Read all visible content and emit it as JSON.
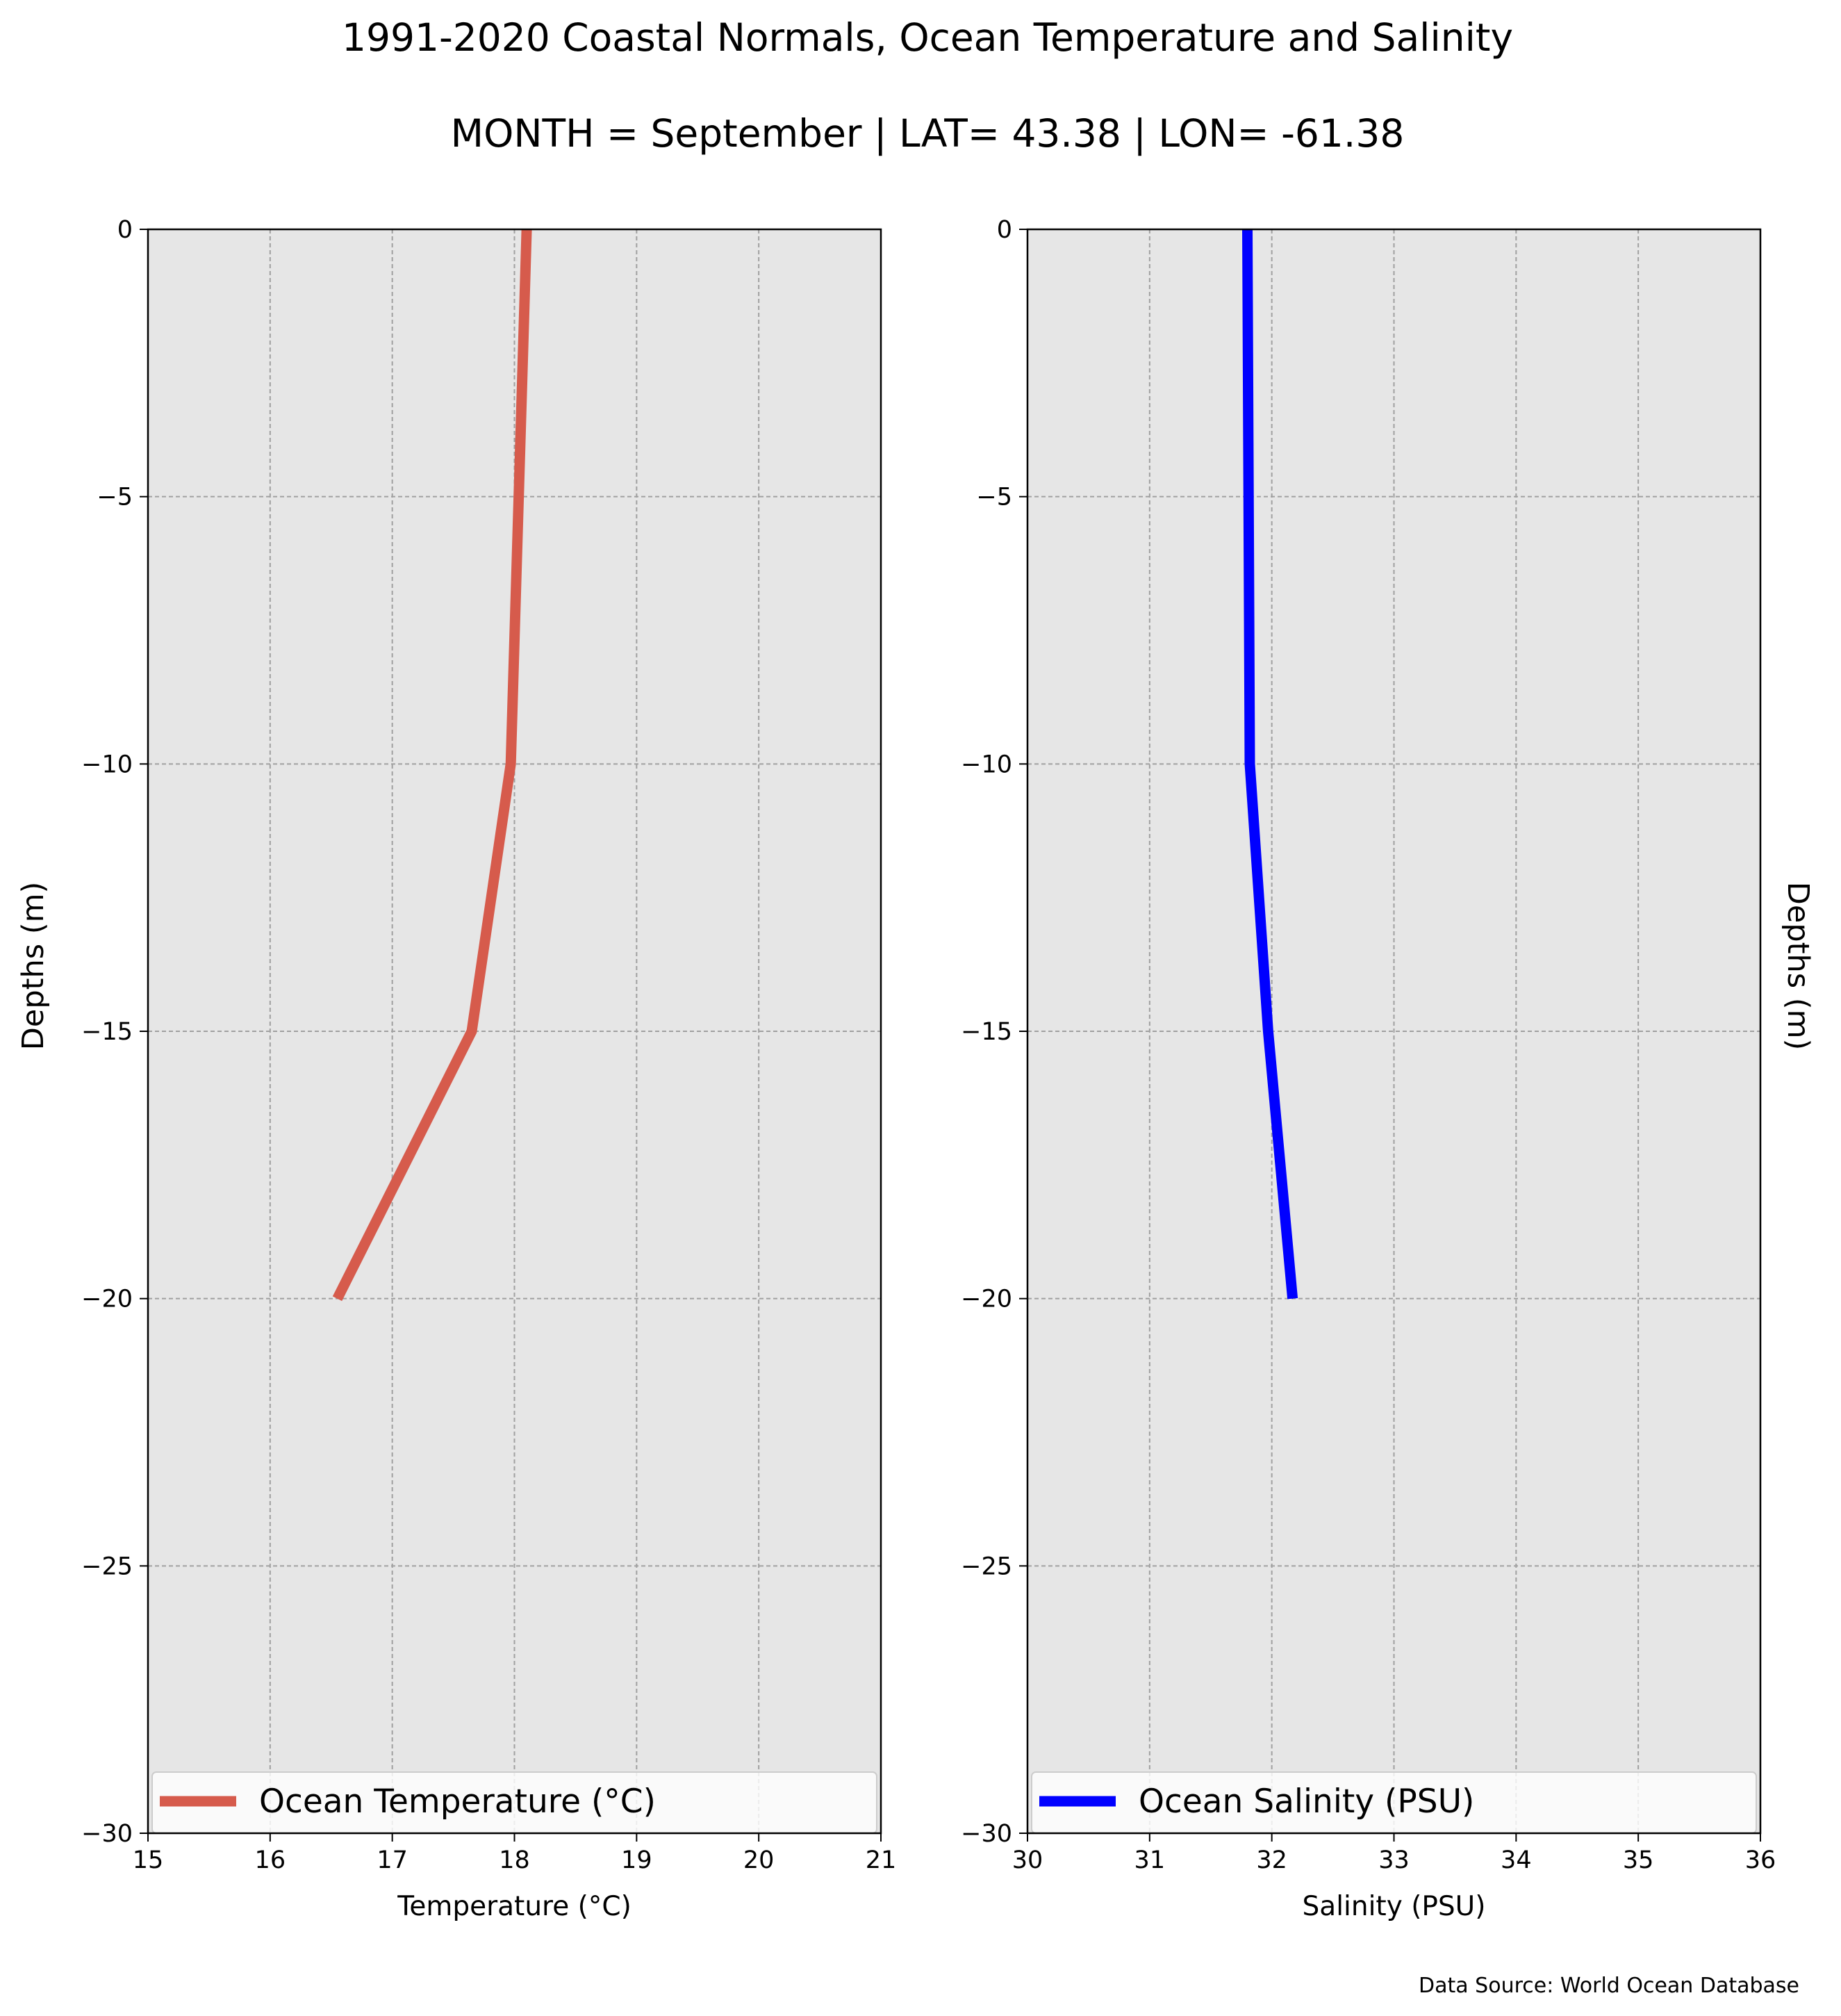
{
  "title": "1991-2020 Coastal Normals, Ocean Temperature and Salinity",
  "subtitle": "MONTH = September | LAT= 43.38 | LON= -61.38",
  "source": "Data Source: World Ocean Database",
  "colors": {
    "temperature": "#d65b4c",
    "salinity": "#0000ff",
    "plot_bg": "#e6e6e6",
    "grid": "#a0a0a0"
  },
  "chart_data": [
    {
      "type": "line",
      "xlabel": "Temperature ($^\\circ$C)",
      "xlabel_display": "Temperature (°C)",
      "ylabel": "Depths (m)",
      "xlim": [
        15,
        21
      ],
      "ylim": [
        -30,
        0
      ],
      "xticks": [
        "15",
        "16",
        "17",
        "18",
        "19",
        "20",
        "21"
      ],
      "yticks": [
        "0",
        "−5",
        "−10",
        "−15",
        "−20",
        "−25",
        "−30"
      ],
      "grid": true,
      "legend_placement": "lower center",
      "series": [
        {
          "name": "Ocean Temperature (°C)",
          "x": [
            18.1,
            17.97,
            17.65,
            16.55
          ],
          "y": [
            0,
            -10,
            -15,
            -20
          ]
        }
      ]
    },
    {
      "type": "line",
      "xlabel": "Salinity (PSU)",
      "xlabel_display": "Salinity (PSU)",
      "ylabel": "Depths (m)",
      "xlim": [
        30,
        36
      ],
      "ylim": [
        -30,
        0
      ],
      "xticks": [
        "30",
        "31",
        "32",
        "33",
        "34",
        "35",
        "36"
      ],
      "yticks": [
        "0",
        "−5",
        "−10",
        "−15",
        "−20",
        "−25",
        "−30"
      ],
      "grid": true,
      "legend_placement": "lower center",
      "series": [
        {
          "name": "Ocean Salinity (PSU)",
          "x": [
            31.8,
            31.82,
            31.97,
            32.17
          ],
          "y": [
            0,
            -10,
            -15,
            -20
          ]
        }
      ]
    }
  ]
}
